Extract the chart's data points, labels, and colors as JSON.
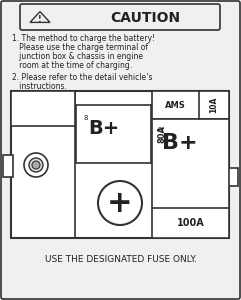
{
  "bg_color": "#f0f0f0",
  "border_color": "#333333",
  "title": "CAUTION",
  "footer": "USE THE DESIGNATED FUSE ONLY.",
  "fuse_box_bg": "#ffffff",
  "text_color": "#222222",
  "text1_line1": "1. The method to charge the battery!",
  "text1_line2": "   Please use the charge terminal of",
  "text1_line3": "   junction box & chassis in engine",
  "text1_line4": "   room at the time of charging.",
  "text2_line1": "2. Please refer to the detail vehicle’s",
  "text2_line2": "   instructions."
}
